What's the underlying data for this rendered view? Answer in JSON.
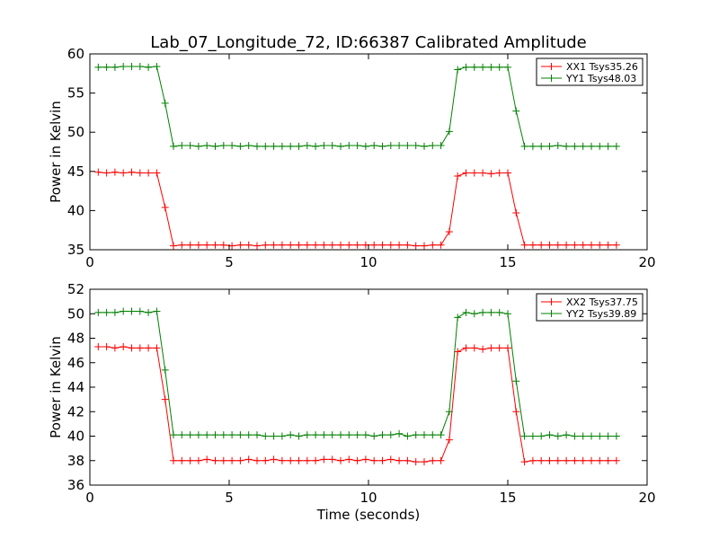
{
  "chart_data": {
    "title": "Lab_07_Longitude_72, ID:66387 Calibrated Amplitude",
    "xlabel": "Time (seconds)",
    "charts": [
      {
        "type": "line",
        "ylabel": "Power in Kelvin",
        "xlim": [
          0,
          20
        ],
        "ylim": [
          35,
          60
        ],
        "xticks": [
          0,
          5,
          10,
          15,
          20
        ],
        "yticks": [
          35,
          40,
          45,
          50,
          55,
          60
        ],
        "legend_position": "top-right",
        "series": [
          {
            "name": "XX1 Tsys35.26",
            "color": "#ff0000",
            "x": [
              0.3,
              0.6,
              0.9,
              1.2,
              1.5,
              1.8,
              2.1,
              2.4,
              2.7,
              3.0,
              3.3,
              3.6,
              3.9,
              4.2,
              4.5,
              4.8,
              5.1,
              5.4,
              5.7,
              6.0,
              6.3,
              6.6,
              6.9,
              7.2,
              7.5,
              7.8,
              8.1,
              8.4,
              8.7,
              9.0,
              9.3,
              9.6,
              9.9,
              10.2,
              10.5,
              10.8,
              11.1,
              11.4,
              11.7,
              12.0,
              12.3,
              12.6,
              12.9,
              13.2,
              13.5,
              13.8,
              14.1,
              14.4,
              14.7,
              15.0,
              15.3,
              15.6,
              15.9,
              16.2,
              16.5,
              16.8,
              17.1,
              17.4,
              17.7,
              18.0,
              18.3,
              18.6,
              18.9
            ],
            "y": [
              44.9,
              44.8,
              44.9,
              44.8,
              44.9,
              44.8,
              44.8,
              44.8,
              40.4,
              35.5,
              35.6,
              35.6,
              35.6,
              35.6,
              35.6,
              35.6,
              35.5,
              35.6,
              35.6,
              35.5,
              35.6,
              35.6,
              35.6,
              35.6,
              35.6,
              35.6,
              35.6,
              35.6,
              35.6,
              35.6,
              35.6,
              35.6,
              35.6,
              35.6,
              35.6,
              35.6,
              35.6,
              35.6,
              35.5,
              35.5,
              35.6,
              35.6,
              37.3,
              44.4,
              44.8,
              44.8,
              44.8,
              44.7,
              44.8,
              44.8,
              39.7,
              35.6,
              35.6,
              35.6,
              35.6,
              35.6,
              35.6,
              35.6,
              35.6,
              35.6,
              35.6,
              35.6,
              35.6
            ]
          },
          {
            "name": "YY1 Tsys48.03",
            "color": "#008000",
            "x": [
              0.3,
              0.6,
              0.9,
              1.2,
              1.5,
              1.8,
              2.1,
              2.4,
              2.7,
              3.0,
              3.3,
              3.6,
              3.9,
              4.2,
              4.5,
              4.8,
              5.1,
              5.4,
              5.7,
              6.0,
              6.3,
              6.6,
              6.9,
              7.2,
              7.5,
              7.8,
              8.1,
              8.4,
              8.7,
              9.0,
              9.3,
              9.6,
              9.9,
              10.2,
              10.5,
              10.8,
              11.1,
              11.4,
              11.7,
              12.0,
              12.3,
              12.6,
              12.9,
              13.2,
              13.5,
              13.8,
              14.1,
              14.4,
              14.7,
              15.0,
              15.3,
              15.6,
              15.9,
              16.2,
              16.5,
              16.8,
              17.1,
              17.4,
              17.7,
              18.0,
              18.3,
              18.6,
              18.9
            ],
            "y": [
              58.3,
              58.3,
              58.3,
              58.4,
              58.4,
              58.4,
              58.3,
              58.4,
              53.7,
              48.2,
              48.3,
              48.3,
              48.2,
              48.3,
              48.2,
              48.3,
              48.3,
              48.2,
              48.3,
              48.2,
              48.2,
              48.2,
              48.2,
              48.2,
              48.2,
              48.3,
              48.2,
              48.3,
              48.3,
              48.2,
              48.3,
              48.3,
              48.2,
              48.3,
              48.2,
              48.3,
              48.3,
              48.3,
              48.3,
              48.2,
              48.3,
              48.3,
              50.1,
              58.0,
              58.3,
              58.3,
              58.3,
              58.3,
              58.3,
              58.3,
              52.7,
              48.2,
              48.2,
              48.2,
              48.2,
              48.3,
              48.2,
              48.2,
              48.2,
              48.2,
              48.2,
              48.2,
              48.2
            ]
          }
        ]
      },
      {
        "type": "line",
        "ylabel": "Power in Kelvin",
        "xlim": [
          0,
          20
        ],
        "ylim": [
          36,
          52
        ],
        "xticks": [
          0,
          5,
          10,
          15,
          20
        ],
        "yticks": [
          36,
          38,
          40,
          42,
          44,
          46,
          48,
          50,
          52
        ],
        "legend_position": "top-right",
        "series": [
          {
            "name": "XX2 Tsys37.75",
            "color": "#ff0000",
            "x": [
              0.3,
              0.6,
              0.9,
              1.2,
              1.5,
              1.8,
              2.1,
              2.4,
              2.7,
              3.0,
              3.3,
              3.6,
              3.9,
              4.2,
              4.5,
              4.8,
              5.1,
              5.4,
              5.7,
              6.0,
              6.3,
              6.6,
              6.9,
              7.2,
              7.5,
              7.8,
              8.1,
              8.4,
              8.7,
              9.0,
              9.3,
              9.6,
              9.9,
              10.2,
              10.5,
              10.8,
              11.1,
              11.4,
              11.7,
              12.0,
              12.3,
              12.6,
              12.9,
              13.2,
              13.5,
              13.8,
              14.1,
              14.4,
              14.7,
              15.0,
              15.3,
              15.6,
              15.9,
              16.2,
              16.5,
              16.8,
              17.1,
              17.4,
              17.7,
              18.0,
              18.3,
              18.6,
              18.9
            ],
            "y": [
              47.3,
              47.3,
              47.2,
              47.3,
              47.2,
              47.2,
              47.2,
              47.2,
              43.0,
              38.0,
              38.0,
              38.0,
              38.0,
              38.1,
              38.0,
              38.0,
              38.0,
              38.0,
              38.1,
              38.0,
              38.0,
              38.1,
              38.0,
              38.0,
              38.0,
              38.0,
              38.0,
              38.1,
              38.1,
              38.0,
              38.1,
              38.0,
              38.1,
              38.0,
              38.0,
              38.1,
              38.0,
              38.0,
              37.9,
              37.9,
              38.0,
              38.0,
              39.7,
              46.9,
              47.2,
              47.2,
              47.1,
              47.2,
              47.2,
              47.2,
              42.0,
              37.9,
              38.0,
              38.0,
              38.0,
              38.0,
              38.0,
              38.0,
              38.0,
              38.0,
              38.0,
              38.0,
              38.0
            ]
          },
          {
            "name": "YY2 Tsys39.89",
            "color": "#008000",
            "x": [
              0.3,
              0.6,
              0.9,
              1.2,
              1.5,
              1.8,
              2.1,
              2.4,
              2.7,
              3.0,
              3.3,
              3.6,
              3.9,
              4.2,
              4.5,
              4.8,
              5.1,
              5.4,
              5.7,
              6.0,
              6.3,
              6.6,
              6.9,
              7.2,
              7.5,
              7.8,
              8.1,
              8.4,
              8.7,
              9.0,
              9.3,
              9.6,
              9.9,
              10.2,
              10.5,
              10.8,
              11.1,
              11.4,
              11.7,
              12.0,
              12.3,
              12.6,
              12.9,
              13.2,
              13.5,
              13.8,
              14.1,
              14.4,
              14.7,
              15.0,
              15.3,
              15.6,
              15.9,
              16.2,
              16.5,
              16.8,
              17.1,
              17.4,
              17.7,
              18.0,
              18.3,
              18.6,
              18.9
            ],
            "y": [
              50.1,
              50.1,
              50.1,
              50.2,
              50.2,
              50.2,
              50.1,
              50.2,
              45.4,
              40.1,
              40.1,
              40.1,
              40.1,
              40.1,
              40.1,
              40.1,
              40.1,
              40.1,
              40.1,
              40.1,
              40.0,
              40.0,
              40.0,
              40.1,
              40.0,
              40.1,
              40.1,
              40.1,
              40.1,
              40.1,
              40.1,
              40.1,
              40.1,
              40.0,
              40.1,
              40.1,
              40.2,
              40.0,
              40.1,
              40.1,
              40.1,
              40.1,
              42.0,
              49.7,
              50.1,
              50.0,
              50.1,
              50.1,
              50.1,
              50.0,
              44.5,
              40.0,
              40.0,
              40.0,
              40.1,
              40.0,
              40.1,
              40.0,
              40.0,
              40.0,
              40.0,
              40.0,
              40.0
            ]
          }
        ]
      }
    ]
  }
}
